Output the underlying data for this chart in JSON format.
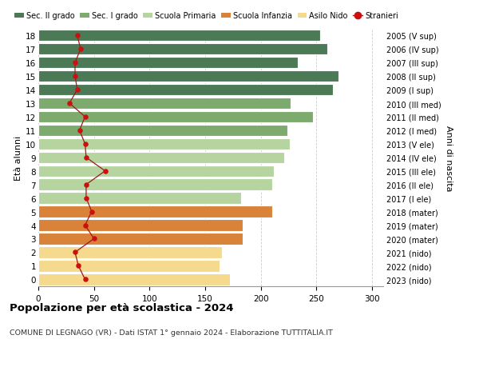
{
  "ages": [
    18,
    17,
    16,
    15,
    14,
    13,
    12,
    11,
    10,
    9,
    8,
    7,
    6,
    5,
    4,
    3,
    2,
    1,
    0
  ],
  "right_labels": [
    "2005 (V sup)",
    "2006 (IV sup)",
    "2007 (III sup)",
    "2008 (II sup)",
    "2009 (I sup)",
    "2010 (III med)",
    "2011 (II med)",
    "2012 (I med)",
    "2013 (V ele)",
    "2014 (IV ele)",
    "2015 (III ele)",
    "2016 (II ele)",
    "2017 (I ele)",
    "2018 (mater)",
    "2019 (mater)",
    "2020 (mater)",
    "2021 (nido)",
    "2022 (nido)",
    "2023 (nido)"
  ],
  "bar_values": [
    253,
    260,
    233,
    270,
    265,
    227,
    247,
    224,
    226,
    221,
    212,
    210,
    182,
    210,
    184,
    184,
    165,
    163,
    172
  ],
  "bar_colors": [
    "#4d7a56",
    "#4d7a56",
    "#4d7a56",
    "#4d7a56",
    "#4d7a56",
    "#7dab6e",
    "#7dab6e",
    "#7dab6e",
    "#b5d4a0",
    "#b5d4a0",
    "#b5d4a0",
    "#b5d4a0",
    "#b5d4a0",
    "#d9823a",
    "#d9823a",
    "#d9823a",
    "#f5d98c",
    "#f5d98c",
    "#f5d98c"
  ],
  "stranieri_values": [
    35,
    38,
    33,
    33,
    35,
    28,
    42,
    37,
    42,
    43,
    60,
    43,
    43,
    48,
    42,
    50,
    33,
    36,
    42
  ],
  "legend_labels": [
    "Sec. II grado",
    "Sec. I grado",
    "Scuola Primaria",
    "Scuola Infanzia",
    "Asilo Nido",
    "Stranieri"
  ],
  "legend_colors": [
    "#4d7a56",
    "#7dab6e",
    "#b5d4a0",
    "#d9823a",
    "#f5d98c",
    "#cc1010"
  ],
  "title": "Popolazione per età scolastica - 2024",
  "subtitle": "COMUNE DI LEGNAGO (VR) - Dati ISTAT 1° gennaio 2024 - Elaborazione TUTTITALIA.IT",
  "ylabel_left": "Età alunni",
  "ylabel_right": "Anni di nascita",
  "xlim": [
    0,
    310
  ],
  "xticks": [
    0,
    50,
    100,
    150,
    200,
    250,
    300
  ],
  "bg_color": "#ffffff",
  "grid_color": "#cccccc",
  "bar_height": 0.85
}
